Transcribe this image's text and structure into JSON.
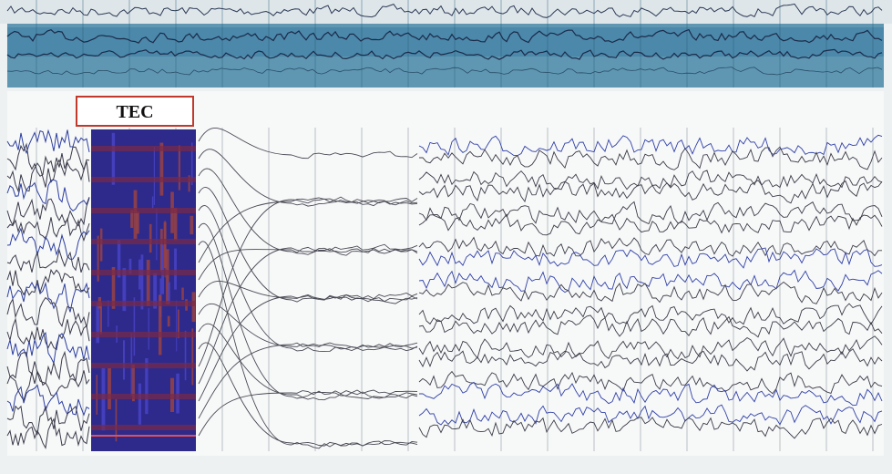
{
  "label": {
    "text": "TEC"
  }
}
